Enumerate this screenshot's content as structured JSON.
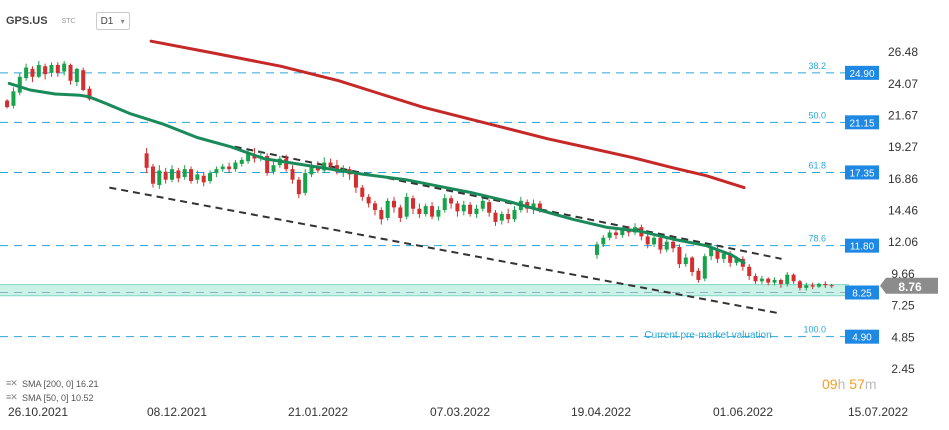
{
  "header": {
    "symbol": "GPS.US",
    "tag": "STC",
    "timeframe": "D1"
  },
  "legend": {
    "sma200": "SMA [200, 0] 16.21",
    "sma50": "SMA [50, 0] 10.52"
  },
  "countdown": {
    "hours": "09",
    "h_unit": "h",
    "minutes": "57",
    "m_unit": "m"
  },
  "annotation": "Current pre-market valuation",
  "colors": {
    "up": "#16a34a",
    "down": "#d32f2f",
    "sma200": "#c62828",
    "sma50": "#1b8a5a",
    "fib_line": "#2aa8d8",
    "fib_text": "#2aa8d8",
    "badge_bg": "#1e88e5",
    "price_badge": "#8c8c8c",
    "zone": "#9fe8d4"
  },
  "chart_data": {
    "type": "candlestick",
    "x_ticks": [
      "26.10.2021",
      "08.12.2021",
      "21.01.2022",
      "07.03.2022",
      "19.04.2022",
      "01.06.2022",
      "15.07.2022"
    ],
    "y_ticks": [
      26.48,
      24.07,
      21.67,
      19.27,
      16.86,
      14.46,
      12.06,
      9.66,
      7.25,
      4.85,
      2.45
    ],
    "ylim": [
      2.45,
      26.48
    ],
    "current_price": 8.76,
    "fib_levels": [
      {
        "label": "38.2",
        "value": 24.9
      },
      {
        "label": "50.0",
        "value": 21.15
      },
      {
        "label": "61.8",
        "value": 17.35
      },
      {
        "label": "78.6",
        "value": 11.8
      },
      {
        "label": "100.0",
        "value": 4.9
      }
    ],
    "premarket_level": 8.25,
    "support_zone": [
      8.0,
      8.85
    ],
    "candles": [
      [
        22.8,
        22.3,
        22.9,
        22.2
      ],
      [
        22.4,
        23.5,
        23.8,
        22.2
      ],
      [
        23.4,
        24.6,
        24.9,
        23.2
      ],
      [
        24.5,
        25.3,
        25.6,
        24.3
      ],
      [
        25.2,
        24.6,
        25.4,
        24.2
      ],
      [
        24.6,
        25.5,
        25.8,
        24.5
      ],
      [
        25.4,
        24.8,
        25.6,
        24.4
      ],
      [
        24.9,
        25.5,
        25.7,
        24.6
      ],
      [
        25.5,
        24.9,
        25.7,
        24.6
      ],
      [
        25.0,
        25.6,
        25.8,
        24.7
      ],
      [
        25.5,
        24.3,
        25.6,
        24.0
      ],
      [
        24.2,
        25.2,
        25.3,
        23.9
      ],
      [
        25.1,
        23.6,
        25.3,
        23.5
      ],
      [
        23.7,
        22.9,
        23.9,
        22.8
      ],
      [
        18.8,
        17.7,
        19.2,
        17.3
      ],
      [
        17.8,
        16.5,
        18.0,
        16.2
      ],
      [
        16.4,
        17.5,
        17.9,
        16.1
      ],
      [
        17.4,
        16.8,
        17.7,
        16.5
      ],
      [
        16.8,
        17.6,
        17.9,
        16.6
      ],
      [
        17.5,
        16.9,
        17.7,
        16.6
      ],
      [
        17.0,
        17.6,
        17.9,
        16.8
      ],
      [
        17.6,
        16.7,
        17.8,
        16.5
      ],
      [
        16.8,
        17.2,
        17.5,
        16.5
      ],
      [
        17.1,
        16.6,
        17.4,
        16.3
      ],
      [
        16.7,
        17.3,
        17.5,
        16.5
      ],
      [
        17.3,
        17.6,
        17.8,
        17.0
      ],
      [
        17.6,
        17.8,
        18.0,
        17.4
      ],
      [
        17.8,
        17.6,
        18.1,
        17.3
      ],
      [
        17.6,
        18.1,
        18.3,
        17.4
      ],
      [
        18.0,
        18.3,
        18.5,
        17.8
      ],
      [
        18.2,
        18.8,
        19.0,
        18.0
      ],
      [
        18.7,
        18.4,
        19.2,
        18.1
      ],
      [
        18.4,
        18.6,
        19.0,
        18.2
      ],
      [
        18.6,
        17.3,
        18.8,
        17.1
      ],
      [
        17.4,
        17.9,
        18.3,
        17.2
      ],
      [
        17.9,
        18.4,
        18.6,
        17.7
      ],
      [
        18.4,
        17.6,
        18.7,
        17.4
      ],
      [
        17.6,
        16.8,
        17.9,
        16.5
      ],
      [
        16.8,
        15.7,
        17.0,
        15.4
      ],
      [
        15.8,
        17.3,
        17.6,
        15.6
      ],
      [
        17.2,
        17.8,
        18.1,
        17.0
      ],
      [
        17.8,
        17.5,
        18.2,
        17.3
      ],
      [
        17.5,
        18.1,
        18.5,
        17.3
      ],
      [
        18.1,
        17.9,
        18.4,
        17.6
      ],
      [
        17.9,
        17.4,
        18.3,
        17.2
      ],
      [
        17.4,
        17.6,
        17.9,
        17.0
      ],
      [
        17.6,
        17.2,
        17.8,
        16.8
      ],
      [
        17.2,
        16.2,
        17.3,
        15.8
      ],
      [
        16.2,
        15.5,
        16.4,
        15.2
      ],
      [
        15.5,
        15.0,
        15.7,
        14.7
      ],
      [
        15.0,
        14.5,
        15.2,
        14.1
      ],
      [
        14.5,
        13.8,
        14.7,
        13.4
      ],
      [
        13.9,
        15.2,
        15.4,
        13.7
      ],
      [
        15.2,
        14.7,
        15.5,
        14.3
      ],
      [
        14.7,
        13.9,
        14.9,
        13.6
      ],
      [
        14.0,
        15.5,
        15.8,
        13.8
      ],
      [
        15.4,
        14.6,
        15.6,
        14.2
      ],
      [
        14.6,
        14.2,
        15.0,
        13.9
      ],
      [
        14.2,
        14.8,
        15.0,
        14.0
      ],
      [
        14.8,
        14.0,
        15.1,
        13.8
      ],
      [
        14.0,
        14.5,
        14.8,
        13.7
      ],
      [
        14.5,
        15.4,
        15.7,
        14.3
      ],
      [
        15.4,
        15.0,
        15.6,
        14.6
      ],
      [
        15.0,
        14.4,
        15.2,
        14.0
      ],
      [
        14.4,
        14.9,
        15.2,
        14.1
      ],
      [
        14.9,
        14.2,
        15.1,
        14.0
      ],
      [
        14.2,
        14.6,
        14.9,
        13.9
      ],
      [
        14.6,
        15.2,
        15.4,
        14.4
      ],
      [
        15.1,
        14.3,
        15.3,
        14.0
      ],
      [
        14.3,
        13.6,
        14.5,
        13.3
      ],
      [
        13.7,
        14.2,
        14.4,
        13.4
      ],
      [
        14.2,
        13.8,
        14.6,
        13.5
      ],
      [
        13.8,
        14.5,
        14.8,
        13.6
      ],
      [
        14.5,
        15.2,
        15.5,
        14.3
      ],
      [
        15.1,
        14.6,
        15.3,
        14.3
      ],
      [
        14.6,
        15.0,
        15.3,
        14.2
      ],
      [
        15.0,
        14.6,
        15.2,
        14.3
      ],
      [
        11.1,
        11.9,
        12.1,
        10.8
      ],
      [
        11.9,
        12.4,
        12.6,
        11.7
      ],
      [
        12.4,
        12.8,
        13.0,
        12.2
      ],
      [
        12.8,
        12.6,
        13.1,
        12.3
      ],
      [
        12.6,
        13.0,
        13.2,
        12.4
      ],
      [
        13.0,
        12.8,
        13.3,
        12.5
      ],
      [
        12.8,
        13.2,
        13.5,
        12.6
      ],
      [
        13.2,
        12.5,
        13.4,
        12.2
      ],
      [
        12.5,
        11.9,
        12.7,
        11.6
      ],
      [
        11.9,
        12.4,
        12.6,
        11.7
      ],
      [
        12.4,
        11.5,
        12.5,
        11.2
      ],
      [
        11.5,
        12.1,
        12.3,
        11.3
      ],
      [
        12.1,
        11.6,
        12.4,
        11.3
      ],
      [
        11.7,
        10.4,
        11.9,
        10.1
      ],
      [
        10.4,
        10.9,
        11.2,
        10.2
      ],
      [
        10.9,
        9.8,
        11.0,
        9.5
      ],
      [
        9.9,
        9.2,
        10.1,
        9.0
      ],
      [
        9.3,
        11.0,
        11.2,
        9.1
      ],
      [
        11.0,
        11.6,
        12.0,
        10.7
      ],
      [
        11.5,
        10.8,
        11.7,
        10.5
      ],
      [
        10.8,
        11.2,
        11.4,
        10.5
      ],
      [
        11.2,
        10.5,
        11.4,
        10.2
      ],
      [
        10.5,
        10.8,
        11.0,
        10.3
      ],
      [
        10.8,
        10.2,
        11.0,
        9.9
      ],
      [
        10.2,
        9.5,
        10.4,
        9.2
      ],
      [
        9.5,
        9.1,
        9.7,
        8.9
      ],
      [
        9.1,
        9.3,
        9.5,
        8.9
      ],
      [
        9.3,
        9.0,
        9.4,
        8.8
      ],
      [
        9.0,
        9.2,
        9.4,
        8.8
      ],
      [
        9.2,
        8.9,
        9.3,
        8.6
      ],
      [
        8.9,
        9.6,
        9.8,
        8.7
      ],
      [
        9.6,
        9.1,
        9.7,
        8.9
      ],
      [
        9.1,
        8.6,
        9.2,
        8.4
      ],
      [
        8.6,
        8.8,
        9.0,
        8.4
      ],
      [
        8.8,
        8.7,
        9.0,
        8.5
      ],
      [
        8.7,
        8.9,
        9.0,
        8.6
      ],
      [
        8.9,
        8.8,
        9.1,
        8.6
      ],
      [
        8.8,
        8.76,
        8.9,
        8.6
      ]
    ],
    "sma200": [
      [
        0.175,
        27.3
      ],
      [
        0.25,
        26.4
      ],
      [
        0.33,
        25.4
      ],
      [
        0.4,
        24.3
      ],
      [
        0.45,
        23.3
      ],
      [
        0.5,
        22.3
      ],
      [
        0.55,
        21.5
      ],
      [
        0.6,
        20.7
      ],
      [
        0.65,
        19.9
      ],
      [
        0.7,
        19.2
      ],
      [
        0.75,
        18.5
      ],
      [
        0.8,
        17.7
      ],
      [
        0.84,
        17.1
      ],
      [
        0.885,
        16.2
      ]
    ],
    "sma50": [
      [
        0.005,
        24.1
      ],
      [
        0.03,
        23.6
      ],
      [
        0.06,
        23.3
      ],
      [
        0.09,
        23.2
      ],
      [
        0.1,
        23.1
      ],
      [
        0.12,
        22.6
      ],
      [
        0.15,
        21.8
      ],
      [
        0.19,
        21.0
      ],
      [
        0.23,
        20.0
      ],
      [
        0.27,
        19.3
      ],
      [
        0.31,
        18.4
      ],
      [
        0.35,
        18.0
      ],
      [
        0.39,
        17.6
      ],
      [
        0.43,
        17.2
      ],
      [
        0.48,
        16.8
      ],
      [
        0.52,
        16.3
      ],
      [
        0.56,
        15.8
      ],
      [
        0.6,
        15.2
      ],
      [
        0.64,
        14.5
      ],
      [
        0.68,
        13.8
      ],
      [
        0.72,
        13.2
      ],
      [
        0.76,
        12.9
      ],
      [
        0.8,
        12.3
      ],
      [
        0.84,
        11.8
      ],
      [
        0.87,
        11.1
      ],
      [
        0.885,
        10.5
      ]
    ],
    "trendlines": [
      {
        "x1": 0.125,
        "y1": 16.2,
        "x2": 0.925,
        "y2": 6.7
      },
      {
        "x1": 0.275,
        "y1": 19.3,
        "x2": 0.93,
        "y2": 10.8
      }
    ]
  }
}
